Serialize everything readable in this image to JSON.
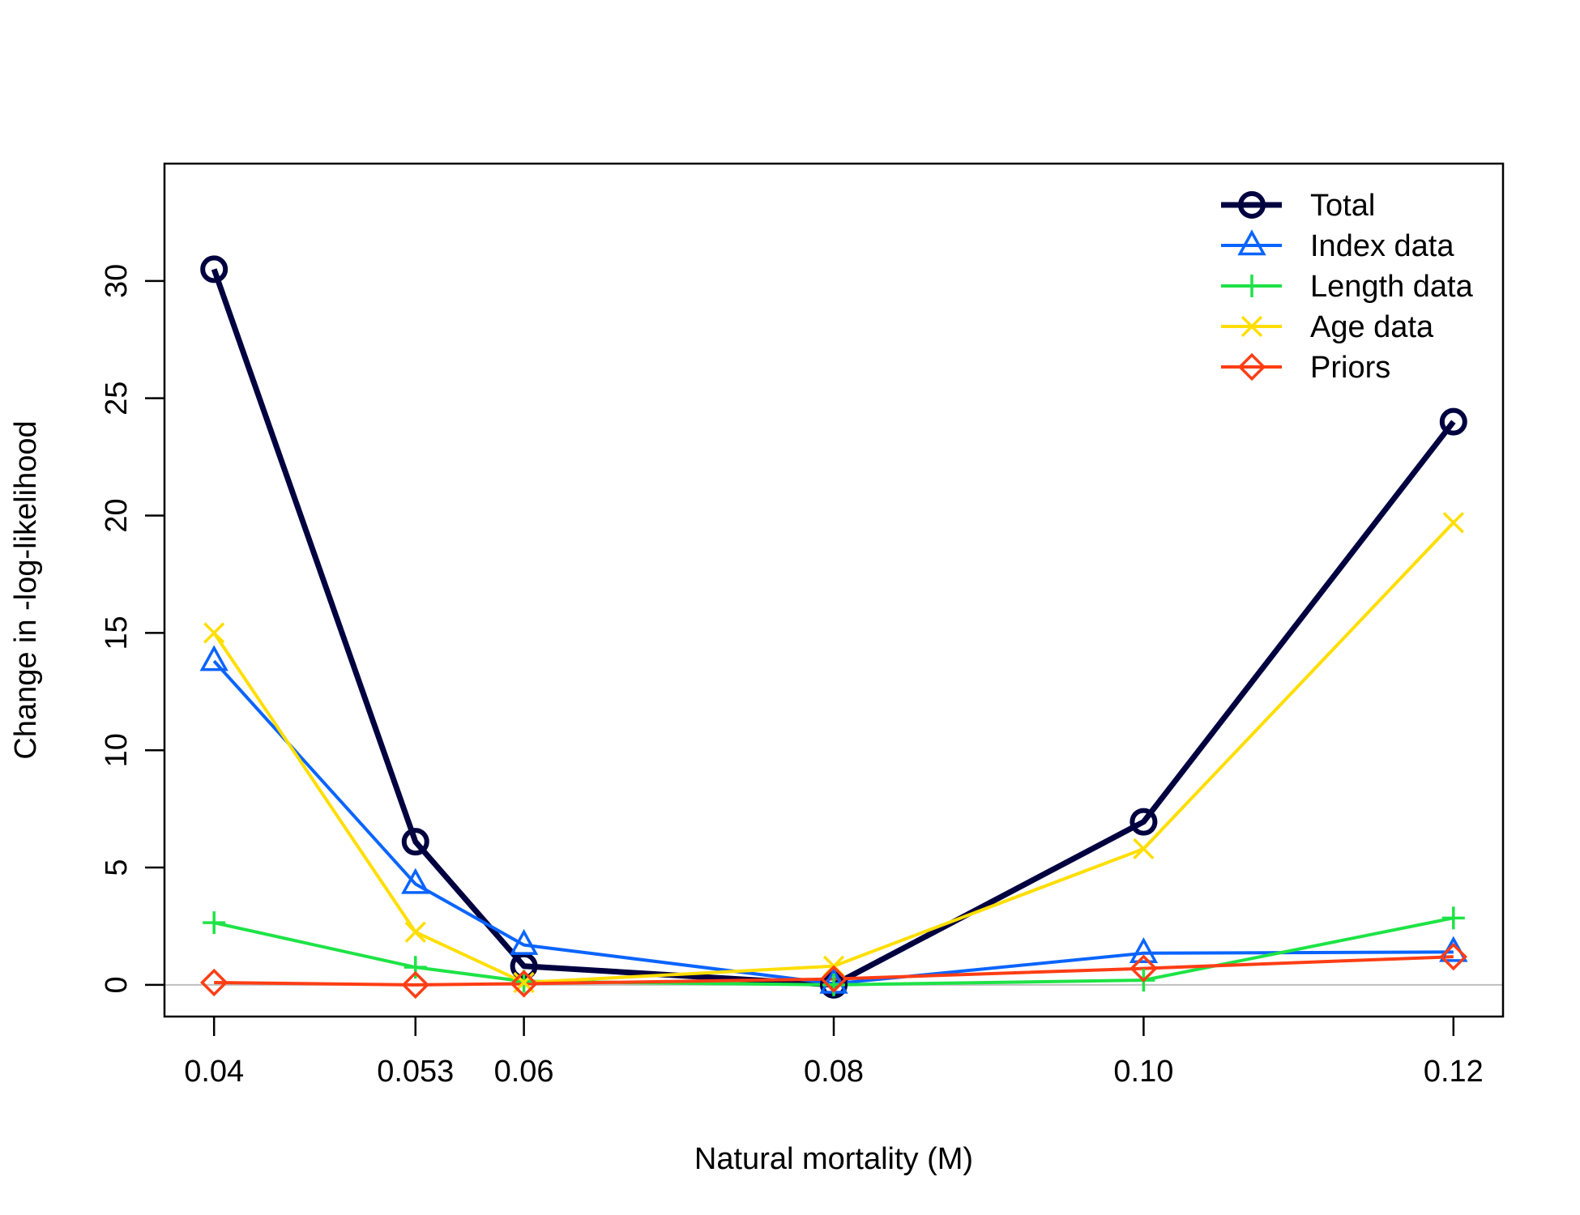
{
  "chart_data": {
    "type": "line",
    "title": "",
    "xlabel": "Natural mortality (M)",
    "ylabel": "Change in -log-likelihood",
    "x": [
      0.04,
      0.053,
      0.06,
      0.08,
      0.1,
      0.12
    ],
    "xticks": [
      "0.04",
      "0.053",
      "0.06",
      "0.08",
      "0.10",
      "0.12"
    ],
    "yticks": [
      "0",
      "5",
      "10",
      "15",
      "20",
      "25",
      "30"
    ],
    "xlim": [
      0.0368,
      0.1232
    ],
    "ylim": [
      -1.35,
      35.0
    ],
    "grid": false,
    "legend_position": "top-right",
    "reference_line": {
      "y": 0,
      "color": "#bebebe"
    },
    "series": [
      {
        "name": "Total",
        "color": "#000040",
        "marker": "circle",
        "values": [
          30.5,
          6.1,
          0.8,
          0.0,
          6.95,
          24.0
        ]
      },
      {
        "name": "Index data",
        "color": "#0a64ff",
        "marker": "triangle",
        "values": [
          13.8,
          4.3,
          1.7,
          0.05,
          1.35,
          1.4
        ]
      },
      {
        "name": "Length data",
        "color": "#1ee346",
        "marker": "plus",
        "values": [
          2.65,
          0.75,
          0.15,
          0.0,
          0.2,
          2.85
        ]
      },
      {
        "name": "Age data",
        "color": "#ffde00",
        "marker": "cross",
        "values": [
          15.0,
          2.25,
          0.1,
          0.8,
          5.8,
          19.7
        ]
      },
      {
        "name": "Priors",
        "color": "#ff3d14",
        "marker": "diamond",
        "values": [
          0.1,
          0.0,
          0.05,
          0.25,
          0.7,
          1.2
        ]
      }
    ]
  }
}
